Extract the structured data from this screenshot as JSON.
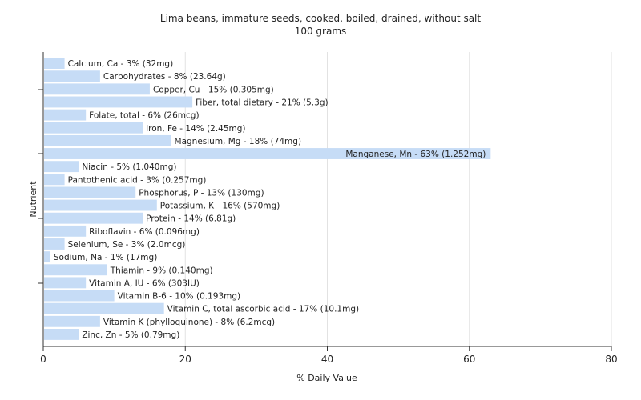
{
  "chart_data": {
    "type": "bar",
    "orientation": "horizontal",
    "title": "Lima beans, immature seeds, cooked, boiled, drained, without salt",
    "subtitle": "100 grams",
    "xlabel": "% Daily Value",
    "ylabel": "Nutrient",
    "xlim": [
      0,
      80
    ],
    "xticks": [
      "0",
      "20",
      "40",
      "60",
      "80"
    ],
    "grid": true,
    "bar_color": "#c6dcf6",
    "categories": [
      "Calcium, Ca",
      "Carbohydrates",
      "Copper, Cu",
      "Fiber, total dietary",
      "Folate, total",
      "Iron, Fe",
      "Magnesium, Mg",
      "Manganese, Mn",
      "Niacin",
      "Pantothenic acid",
      "Phosphorus, P",
      "Potassium, K",
      "Protein",
      "Riboflavin",
      "Selenium, Se",
      "Sodium, Na",
      "Thiamin",
      "Vitamin A, IU",
      "Vitamin B-6",
      "Vitamin C, total ascorbic acid",
      "Vitamin K (phylloquinone)",
      "Zinc, Zn"
    ],
    "values": [
      3,
      8,
      15,
      21,
      6,
      14,
      18,
      63,
      5,
      3,
      13,
      16,
      14,
      6,
      3,
      1,
      9,
      6,
      10,
      17,
      8,
      5
    ],
    "labels": [
      "Calcium, Ca - 3% (32mg)",
      "Carbohydrates - 8% (23.64g)",
      "Copper, Cu - 15% (0.305mg)",
      "Fiber, total dietary - 21% (5.3g)",
      "Folate, total - 6% (26mcg)",
      "Iron, Fe - 14% (2.45mg)",
      "Magnesium, Mg - 18% (74mg)",
      "Manganese, Mn - 63% (1.252mg)",
      "Niacin - 5% (1.040mg)",
      "Pantothenic acid - 3% (0.257mg)",
      "Phosphorus, P - 13% (130mg)",
      "Potassium, K - 16% (570mg)",
      "Protein - 14% (6.81g)",
      "Riboflavin - 6% (0.096mg)",
      "Selenium, Se - 3% (2.0mcg)",
      "Sodium, Na - 1% (17mg)",
      "Thiamin - 9% (0.140mg)",
      "Vitamin A, IU - 6% (303IU)",
      "Vitamin B-6 - 10% (0.193mg)",
      "Vitamin C, total ascorbic acid - 17% (10.1mg)",
      "Vitamin K (phylloquinone) - 8% (6.2mcg)",
      "Zinc, Zn - 5% (0.79mg)"
    ]
  }
}
